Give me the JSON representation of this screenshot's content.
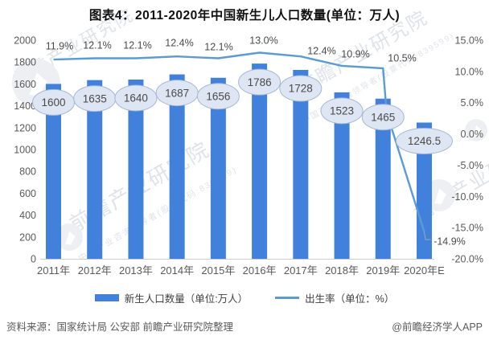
{
  "title": "图表4：2011-2020年中国新生儿人口数量(单位：万人)",
  "chart_data": {
    "type": "bar",
    "categories": [
      "2011年",
      "2012年",
      "2013年",
      "2014年",
      "2015年",
      "2016年",
      "2017年",
      "2018年",
      "2019年",
      "2020年E"
    ],
    "series": [
      {
        "name": "新生人口数量（单位:万人）",
        "type": "bar",
        "axis": "left",
        "color": "#4181DC",
        "values": [
          1600,
          1635,
          1640,
          1687,
          1656,
          1786,
          1728,
          1523,
          1465,
          1246.5
        ],
        "value_labels": [
          "1600",
          "1635",
          "1640",
          "1687",
          "1656",
          "1786",
          "1728",
          "1523",
          "1465",
          "1246.5"
        ]
      },
      {
        "name": "出生率（单位：%）",
        "type": "line",
        "axis": "right",
        "color": "#5B9BD5",
        "values": [
          11.9,
          12.1,
          12.1,
          12.4,
          12.1,
          13.0,
          12.4,
          10.9,
          10.5,
          -14.9
        ],
        "value_labels": [
          "11.9%",
          "12.1%",
          "12.1%",
          "12.4%",
          "12.1%",
          "13.0%",
          "12.4%",
          "10.9%",
          "10.5%",
          "-14.9%"
        ]
      }
    ],
    "left_axis": {
      "min": 0,
      "max": 2000,
      "step": 200,
      "ticks": [
        "2000",
        "1800",
        "1600",
        "1400",
        "1200",
        "1000",
        "800",
        "600",
        "400",
        "200",
        "0"
      ]
    },
    "right_axis": {
      "min": -20,
      "max": 15,
      "step": 5,
      "ticks": [
        "15.0%",
        "10.0%",
        "5.0%",
        "0.0%",
        "-5.0%",
        "-10.0%",
        "-15.0%",
        "-20.0%"
      ]
    },
    "grid": false,
    "legend_position": "bottom"
  },
  "legend": {
    "items": [
      {
        "label": "新生人口数量（单位:万人）",
        "swatch": "bar",
        "color": "#4181DC"
      },
      {
        "label": "出生率（单位：%）",
        "swatch": "line",
        "color": "#5B9BD5"
      }
    ]
  },
  "footer": {
    "source": "资料来源：国家统计局 公安部 前瞻产业研究院整理",
    "credit": "@前瞻经济学人APP"
  },
  "watermark": {
    "brand": "前瞻产业研究院",
    "tagline": "中国产业咨询领导者(股票代码:839599)"
  },
  "colors": {
    "bar": "#4181DC",
    "line": "#5B9BD5",
    "ellipse_fill": "#DEE6F3",
    "ellipse_stroke": "#A6B7D4",
    "axis_text": "#595959",
    "label_text": "#4a4a4a",
    "baseline": "#CFCFCF",
    "watermark": "#D9DEE5"
  }
}
